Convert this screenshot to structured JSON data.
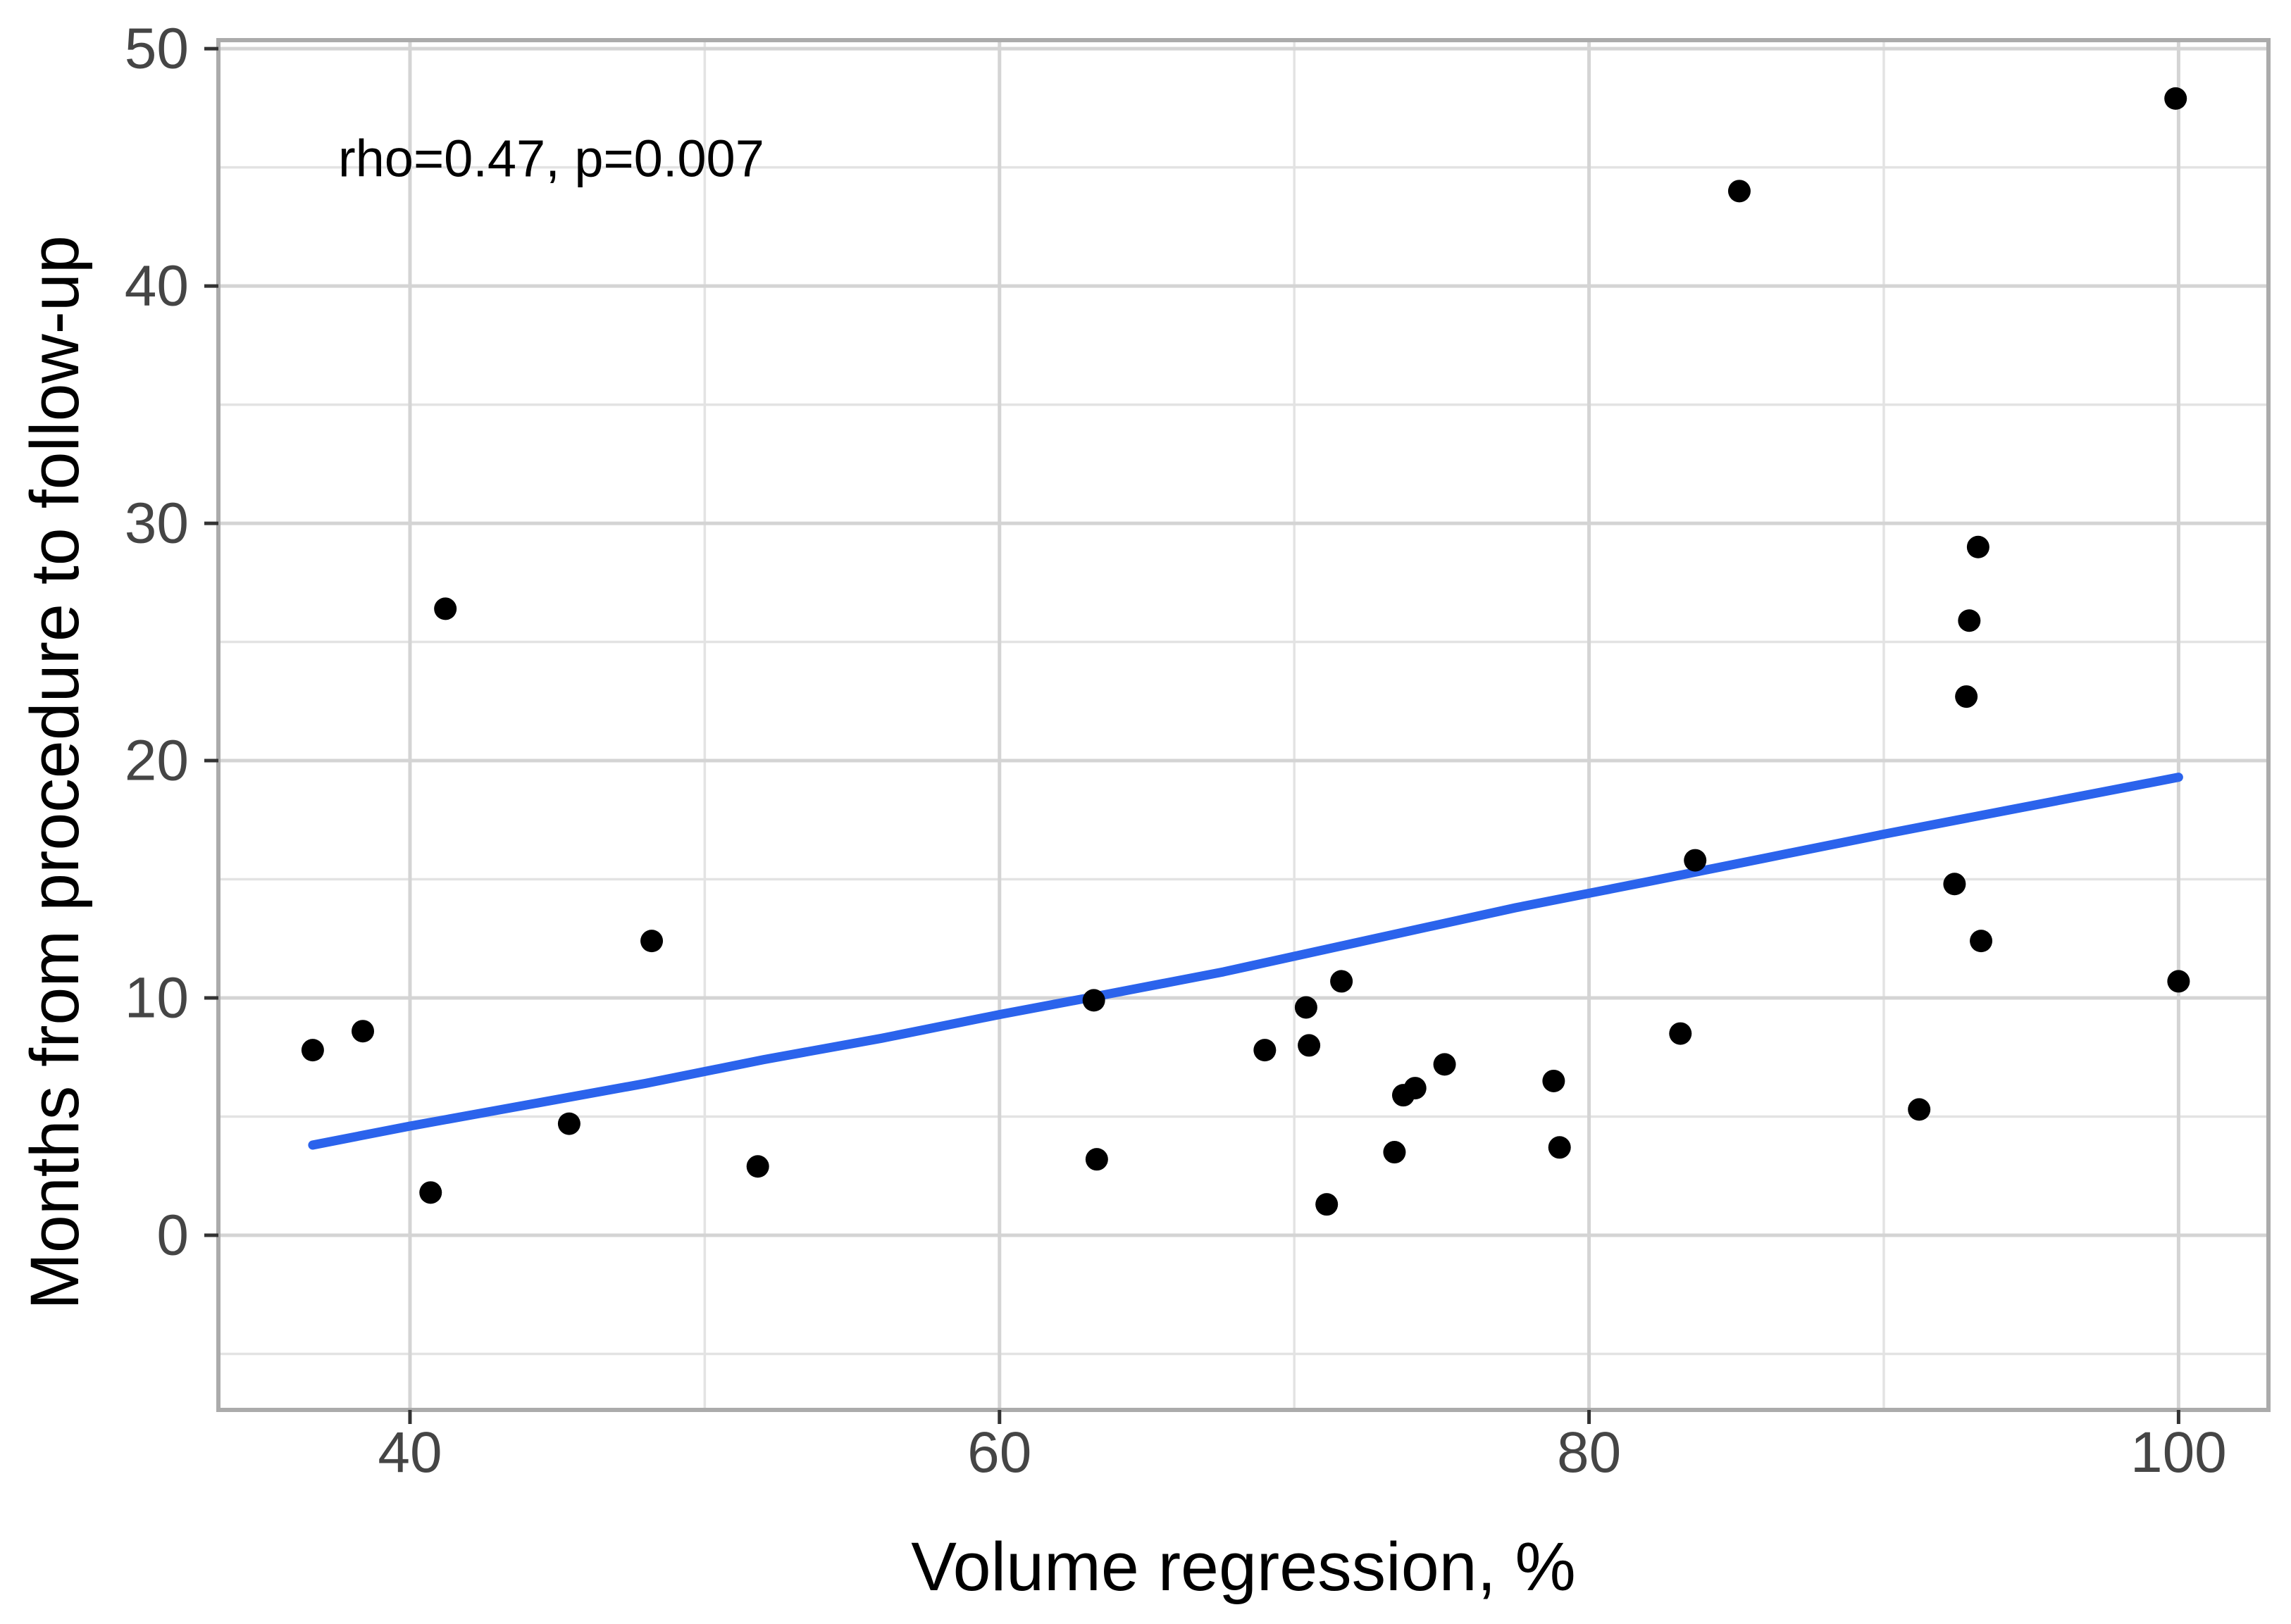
{
  "chart_data": {
    "type": "scatter",
    "title": "",
    "xlabel": "Volume regression, %",
    "ylabel": "Months from procedure to follow-up",
    "annotation": "rho=0.47, p=0.007",
    "xlim": [
      33.5,
      103.05
    ],
    "ylim": [
      -7.36,
      50.36
    ],
    "x_major_ticks": [
      40,
      60,
      80,
      100
    ],
    "x_minor_ticks": [
      50,
      70,
      90
    ],
    "y_major_ticks": [
      0,
      10,
      20,
      30,
      40,
      50
    ],
    "y_minor_ticks": [
      -5,
      5,
      15,
      25,
      35,
      45
    ],
    "grid": true,
    "legend": false,
    "points": [
      [
        36.7,
        7.8
      ],
      [
        38.4,
        8.6
      ],
      [
        40.7,
        1.8
      ],
      [
        41.2,
        26.4
      ],
      [
        45.4,
        4.7
      ],
      [
        48.2,
        12.4
      ],
      [
        51.8,
        2.9
      ],
      [
        63.2,
        9.9
      ],
      [
        63.3,
        3.2
      ],
      [
        69.0,
        7.8
      ],
      [
        70.4,
        9.6
      ],
      [
        70.5,
        8.0
      ],
      [
        71.6,
        10.7
      ],
      [
        71.1,
        1.3
      ],
      [
        73.4,
        3.5
      ],
      [
        73.7,
        5.9
      ],
      [
        74.1,
        6.2
      ],
      [
        75.1,
        7.2
      ],
      [
        78.8,
        6.5
      ],
      [
        79.0,
        3.7
      ],
      [
        83.1,
        8.5
      ],
      [
        83.6,
        15.8
      ],
      [
        85.1,
        44.0
      ],
      [
        91.2,
        5.3
      ],
      [
        92.4,
        14.8
      ],
      [
        92.8,
        22.7
      ],
      [
        92.9,
        25.9
      ],
      [
        93.2,
        29.0
      ],
      [
        93.3,
        12.4
      ],
      [
        99.9,
        47.9
      ],
      [
        100.0,
        10.7
      ]
    ],
    "trend_line": [
      [
        36.7,
        3.8
      ],
      [
        40,
        4.6
      ],
      [
        44,
        5.5
      ],
      [
        48,
        6.4
      ],
      [
        52,
        7.4
      ],
      [
        56,
        8.3
      ],
      [
        60,
        9.3
      ],
      [
        63,
        10.0
      ],
      [
        67.6,
        11.1
      ],
      [
        72,
        12.3
      ],
      [
        77.5,
        13.8
      ],
      [
        82,
        14.9
      ],
      [
        86,
        15.9
      ],
      [
        90,
        16.9
      ],
      [
        95,
        18.1
      ],
      [
        100,
        19.3
      ]
    ],
    "colors": {
      "point": "#000000",
      "trend": "#2b63ec",
      "grid_major": "#d4d4d4",
      "grid_minor": "#e3e3e3",
      "panel_border": "#ababab",
      "tick_mark": "#333333",
      "tick_label": "#454545",
      "text": "#000000",
      "background": "#ffffff"
    }
  }
}
